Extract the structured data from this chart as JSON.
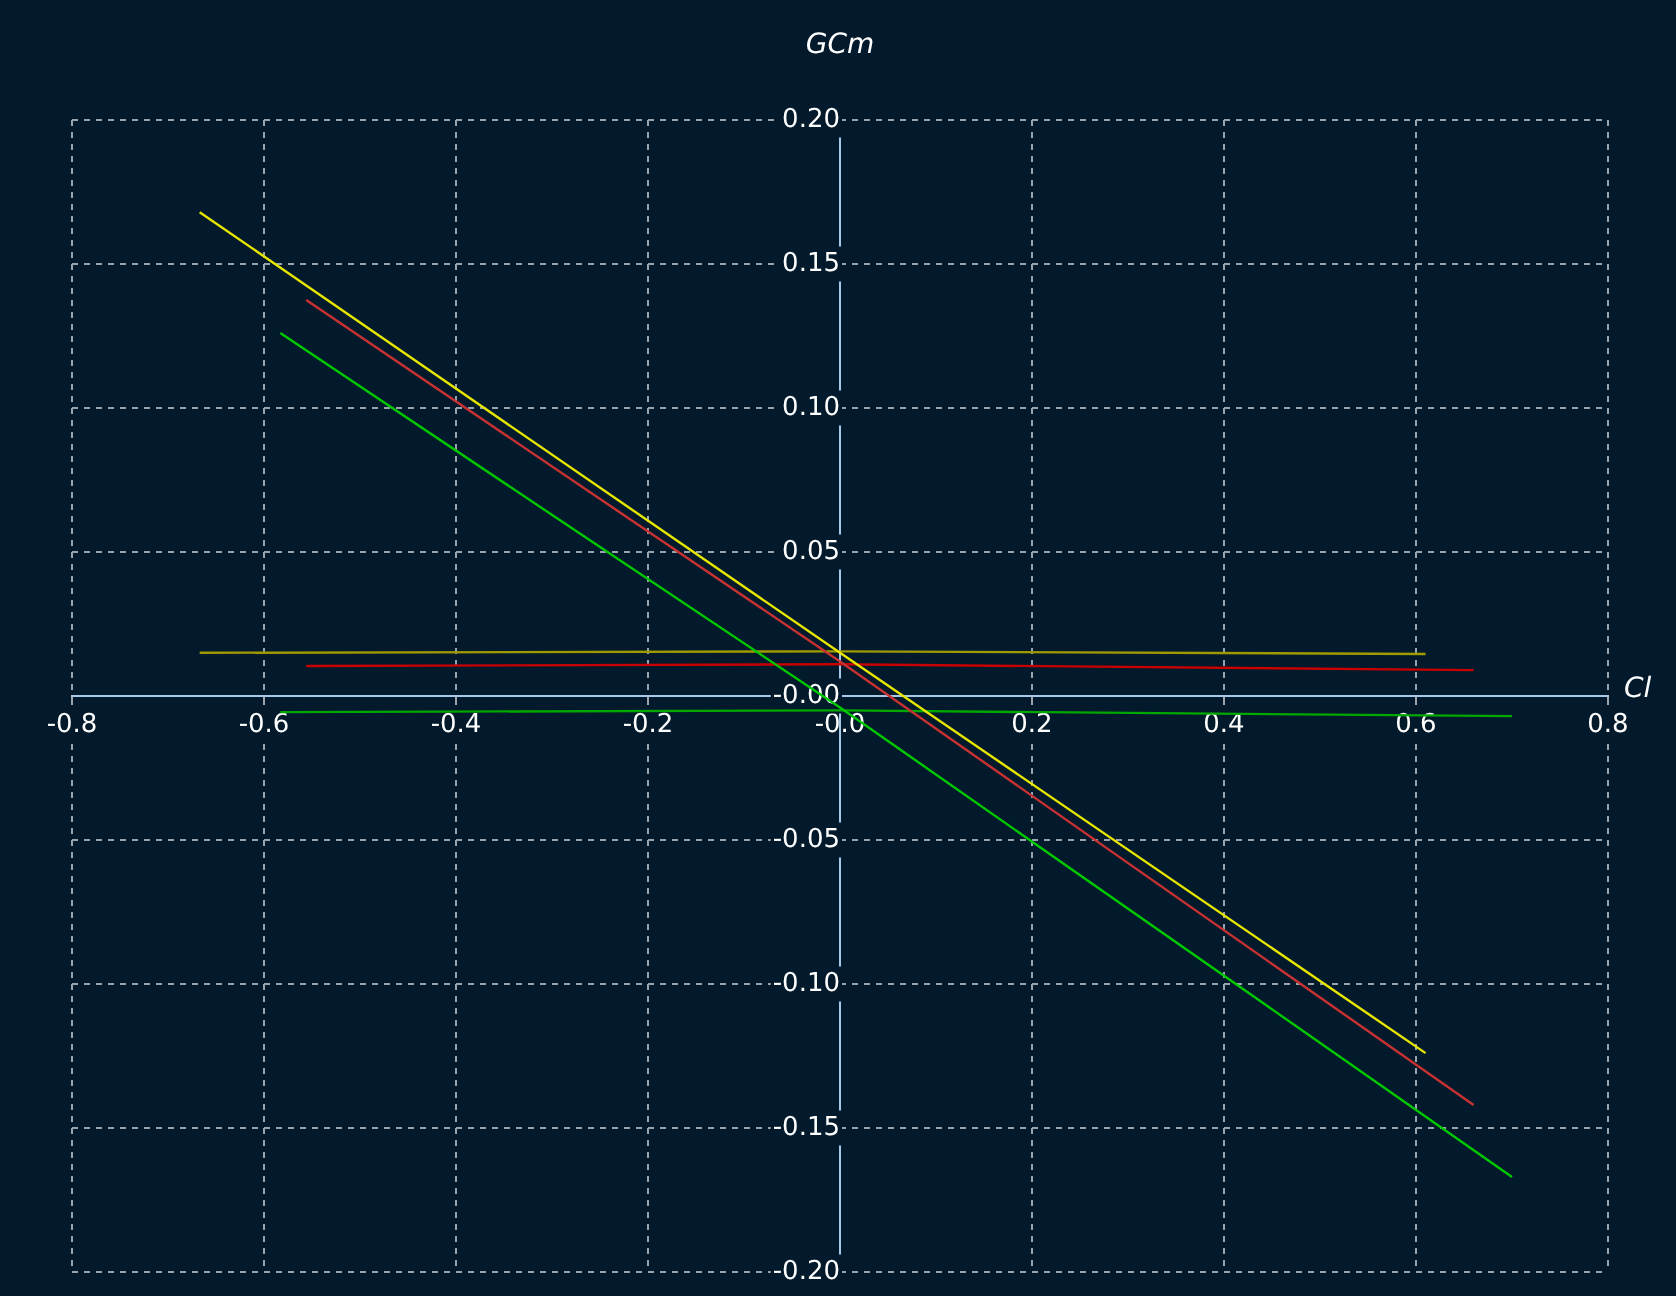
{
  "chart_data": {
    "type": "line",
    "xlabel": "Cl",
    "ylabel": "GCm",
    "grid": true,
    "legend": false,
    "marker": "none",
    "line_style": "solid",
    "xlim": [
      -0.8,
      0.8
    ],
    "ylim": [
      -0.2,
      0.2
    ],
    "xticks": [
      {
        "value": -0.8,
        "label": "-0.8"
      },
      {
        "value": -0.6,
        "label": "-0.6"
      },
      {
        "value": -0.4,
        "label": "-0.4"
      },
      {
        "value": -0.2,
        "label": "-0.2"
      },
      {
        "value": 0,
        "label": "-0.0"
      },
      {
        "value": 0.2,
        "label": "0.2"
      },
      {
        "value": 0.4,
        "label": "0.4"
      },
      {
        "value": 0.6,
        "label": "0.6"
      },
      {
        "value": 0.8,
        "label": "0.8"
      }
    ],
    "yticks": [
      {
        "value": -0.2,
        "label": "-0.20"
      },
      {
        "value": -0.15,
        "label": "-0.15"
      },
      {
        "value": -0.1,
        "label": "-0.10"
      },
      {
        "value": -0.05,
        "label": "-0.05"
      },
      {
        "value": 0,
        "label": "-0.00"
      },
      {
        "value": 0.05,
        "label": "0.05"
      },
      {
        "value": 0.1,
        "label": "0.10"
      },
      {
        "value": 0.15,
        "label": "0.15"
      },
      {
        "value": 0.2,
        "label": "0.20"
      }
    ],
    "series": [
      {
        "color": "#e6e600",
        "x": [
          -0.667,
          0,
          0.61
        ],
        "values": [
          0.168,
          0.015,
          -0.124
        ]
      },
      {
        "color": "#c83232",
        "x": [
          -0.556,
          0,
          0.66
        ],
        "values": [
          0.1375,
          0.012,
          -0.142
        ]
      },
      {
        "color": "#00c800",
        "x": [
          -0.583,
          0,
          0.7
        ],
        "values": [
          0.126,
          -0.004,
          -0.167
        ]
      },
      {
        "color": "#a09a00",
        "x": [
          -0.667,
          0,
          0.61
        ],
        "values": [
          0.015,
          0.0155,
          0.0146
        ]
      },
      {
        "color": "#c80000",
        "x": [
          -0.556,
          0,
          0.66
        ],
        "values": [
          0.0104,
          0.011,
          0.009
        ]
      },
      {
        "color": "#00a800",
        "x": [
          -0.583,
          0,
          0.7
        ],
        "values": [
          -0.0056,
          -0.005,
          -0.007
        ]
      }
    ]
  }
}
